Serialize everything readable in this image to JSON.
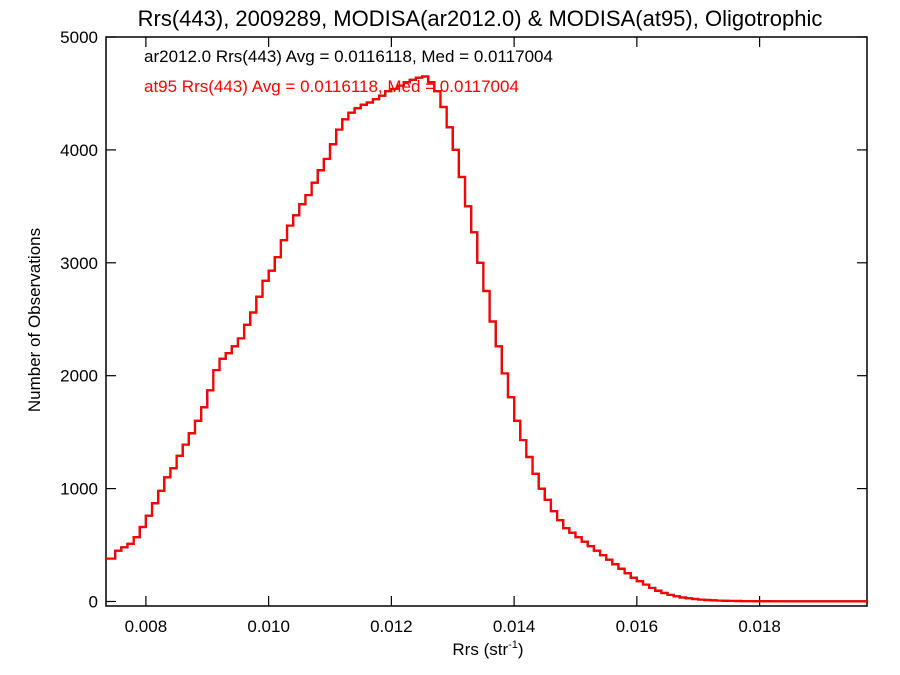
{
  "chart_data": {
    "type": "histogram",
    "title": "Rrs(443), 2009289, MODISA(ar2012.0) & MODISA(at95), Oligotrophic",
    "xlabel_main": "Rrs (str",
    "xlabel_sup": "-1",
    "xlabel_close": ")",
    "ylabel": "Number of Observations",
    "xlim": [
      0.00735,
      0.01975
    ],
    "ylim": [
      -40,
      5000
    ],
    "xticks": [
      "0.008",
      "0.010",
      "0.012",
      "0.014",
      "0.016",
      "0.018"
    ],
    "xtick_values": [
      0.008,
      0.01,
      0.012,
      0.014,
      0.016,
      0.018
    ],
    "yticks": [
      "0",
      "1000",
      "2000",
      "3000",
      "4000",
      "5000"
    ],
    "ytick_values": [
      0,
      1000,
      2000,
      3000,
      4000,
      5000
    ],
    "grid": false,
    "legend_position": "top-left",
    "series": [
      {
        "name": "ar2012.0",
        "color": "#000000",
        "label": "ar2012.0 Rrs(443) Avg = 0.0116118, Med = 0.0117004",
        "x": [
          0.00735,
          0.0075,
          0.0076,
          0.0077,
          0.0078,
          0.0079,
          0.008,
          0.0081,
          0.0082,
          0.0083,
          0.0084,
          0.0085,
          0.0086,
          0.0087,
          0.0088,
          0.0089,
          0.009,
          0.0091,
          0.0092,
          0.0093,
          0.0094,
          0.0095,
          0.0096,
          0.0097,
          0.0098,
          0.0099,
          0.01,
          0.0101,
          0.0102,
          0.0103,
          0.0104,
          0.0105,
          0.0106,
          0.0107,
          0.0108,
          0.0109,
          0.011,
          0.0111,
          0.0112,
          0.0113,
          0.0114,
          0.0115,
          0.0116,
          0.0117,
          0.0118,
          0.0119,
          0.012,
          0.0121,
          0.0122,
          0.0123,
          0.0124,
          0.0125,
          0.0126,
          0.0127,
          0.0128,
          0.0129,
          0.013,
          0.0131,
          0.0132,
          0.0133,
          0.0134,
          0.0135,
          0.0136,
          0.0137,
          0.0138,
          0.0139,
          0.014,
          0.0141,
          0.0142,
          0.0143,
          0.0144,
          0.0145,
          0.0146,
          0.0147,
          0.0148,
          0.0149,
          0.015,
          0.0151,
          0.0152,
          0.0153,
          0.0154,
          0.0155,
          0.0156,
          0.0157,
          0.0158,
          0.0159,
          0.016,
          0.0161,
          0.0162,
          0.0163,
          0.0164,
          0.0165,
          0.0166,
          0.0167,
          0.0168,
          0.0169,
          0.017,
          0.0171,
          0.0172,
          0.0173,
          0.0174,
          0.0175,
          0.0176,
          0.0177,
          0.0178,
          0.0179,
          0.018,
          0.0182,
          0.0185,
          0.019,
          0.0195,
          0.01975
        ],
        "y": [
          380,
          450,
          480,
          510,
          570,
          660,
          760,
          870,
          980,
          1100,
          1180,
          1290,
          1390,
          1490,
          1600,
          1720,
          1870,
          2050,
          2150,
          2200,
          2260,
          2330,
          2450,
          2560,
          2700,
          2840,
          2930,
          3050,
          3200,
          3330,
          3420,
          3520,
          3600,
          3710,
          3820,
          3920,
          4050,
          4180,
          4270,
          4330,
          4370,
          4400,
          4420,
          4450,
          4480,
          4520,
          4540,
          4570,
          4600,
          4620,
          4640,
          4650,
          4600,
          4520,
          4380,
          4200,
          4000,
          3760,
          3500,
          3270,
          3000,
          2750,
          2480,
          2260,
          2020,
          1810,
          1600,
          1430,
          1280,
          1130,
          1000,
          900,
          800,
          720,
          650,
          610,
          570,
          530,
          490,
          450,
          410,
          370,
          330,
          290,
          250,
          210,
          180,
          150,
          120,
          95,
          75,
          58,
          45,
          35,
          28,
          22,
          17,
          13,
          10,
          8,
          6,
          5,
          4,
          3,
          3,
          2,
          2,
          1,
          1,
          1,
          1,
          0
        ]
      },
      {
        "name": "at95",
        "color": "#ff0000",
        "label": "at95 Rrs(443) Avg = 0.0116118, Med = 0.0117004",
        "x": [
          0.00735,
          0.0075,
          0.0076,
          0.0077,
          0.0078,
          0.0079,
          0.008,
          0.0081,
          0.0082,
          0.0083,
          0.0084,
          0.0085,
          0.0086,
          0.0087,
          0.0088,
          0.0089,
          0.009,
          0.0091,
          0.0092,
          0.0093,
          0.0094,
          0.0095,
          0.0096,
          0.0097,
          0.0098,
          0.0099,
          0.01,
          0.0101,
          0.0102,
          0.0103,
          0.0104,
          0.0105,
          0.0106,
          0.0107,
          0.0108,
          0.0109,
          0.011,
          0.0111,
          0.0112,
          0.0113,
          0.0114,
          0.0115,
          0.0116,
          0.0117,
          0.0118,
          0.0119,
          0.012,
          0.0121,
          0.0122,
          0.0123,
          0.0124,
          0.0125,
          0.0126,
          0.0127,
          0.0128,
          0.0129,
          0.013,
          0.0131,
          0.0132,
          0.0133,
          0.0134,
          0.0135,
          0.0136,
          0.0137,
          0.0138,
          0.0139,
          0.014,
          0.0141,
          0.0142,
          0.0143,
          0.0144,
          0.0145,
          0.0146,
          0.0147,
          0.0148,
          0.0149,
          0.015,
          0.0151,
          0.0152,
          0.0153,
          0.0154,
          0.0155,
          0.0156,
          0.0157,
          0.0158,
          0.0159,
          0.016,
          0.0161,
          0.0162,
          0.0163,
          0.0164,
          0.0165,
          0.0166,
          0.0167,
          0.0168,
          0.0169,
          0.017,
          0.0171,
          0.0172,
          0.0173,
          0.0174,
          0.0175,
          0.0176,
          0.0177,
          0.0178,
          0.0179,
          0.018,
          0.0182,
          0.0185,
          0.019,
          0.0195,
          0.01975
        ],
        "y": [
          380,
          450,
          480,
          510,
          570,
          660,
          760,
          870,
          980,
          1100,
          1180,
          1290,
          1390,
          1490,
          1600,
          1720,
          1870,
          2050,
          2150,
          2200,
          2260,
          2330,
          2450,
          2560,
          2700,
          2840,
          2930,
          3050,
          3200,
          3330,
          3420,
          3520,
          3600,
          3710,
          3820,
          3920,
          4050,
          4180,
          4270,
          4330,
          4370,
          4400,
          4420,
          4450,
          4480,
          4520,
          4540,
          4570,
          4600,
          4620,
          4640,
          4650,
          4600,
          4520,
          4380,
          4200,
          4000,
          3760,
          3500,
          3270,
          3000,
          2750,
          2480,
          2260,
          2020,
          1810,
          1600,
          1430,
          1280,
          1130,
          1000,
          900,
          800,
          720,
          650,
          610,
          570,
          530,
          490,
          450,
          410,
          370,
          330,
          290,
          250,
          210,
          180,
          150,
          120,
          95,
          75,
          58,
          45,
          35,
          28,
          22,
          17,
          13,
          10,
          8,
          6,
          5,
          4,
          3,
          3,
          2,
          2,
          1,
          1,
          1,
          1,
          0
        ]
      }
    ]
  }
}
